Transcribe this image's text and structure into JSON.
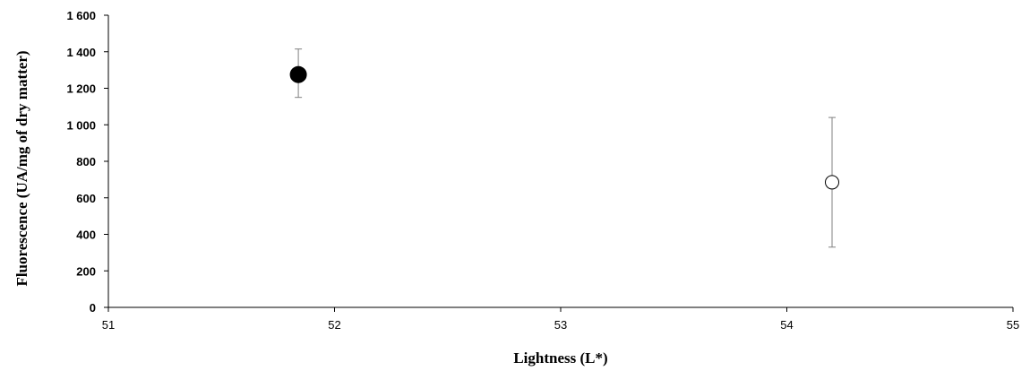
{
  "chart_data": {
    "type": "scatter",
    "xlabel": "Lightness (L*)",
    "ylabel": "Fluorescence (UA/mg of dry matter)",
    "xlim": [
      51,
      55
    ],
    "ylim": [
      0,
      1600
    ],
    "x_ticks": [
      {
        "value": 51,
        "label": "51"
      },
      {
        "value": 52,
        "label": "52"
      },
      {
        "value": 53,
        "label": "53"
      },
      {
        "value": 54,
        "label": "54"
      },
      {
        "value": 55,
        "label": "55"
      }
    ],
    "y_ticks": [
      {
        "value": 0,
        "label": "0"
      },
      {
        "value": 200,
        "label": "200"
      },
      {
        "value": 400,
        "label": "400"
      },
      {
        "value": 600,
        "label": "600"
      },
      {
        "value": 800,
        "label": "800"
      },
      {
        "value": 1000,
        "label": "1 000"
      },
      {
        "value": 1200,
        "label": "1 200"
      },
      {
        "value": 1400,
        "label": "1 400"
      },
      {
        "value": 1600,
        "label": "1 600"
      }
    ],
    "grid": false,
    "series": [
      {
        "marker": "filled-circle",
        "color": "#000000",
        "points": [
          {
            "x": 51.84,
            "y": 1275,
            "err_low": 1150,
            "err_high": 1415
          }
        ]
      },
      {
        "marker": "open-circle",
        "color": "#ffffff",
        "points": [
          {
            "x": 54.2,
            "y": 685,
            "err_low": 330,
            "err_high": 1040
          }
        ]
      }
    ]
  }
}
